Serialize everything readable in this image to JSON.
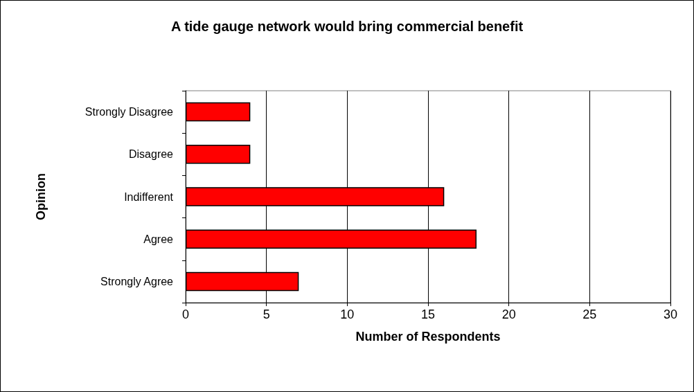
{
  "chart_data": {
    "type": "bar",
    "orientation": "horizontal",
    "title": "A tide gauge network would bring commercial benefit",
    "xlabel": "Number of Respondents",
    "ylabel": "Opinion",
    "categories": [
      "Strongly Disagree",
      "Disagree",
      "Indifferent",
      "Agree",
      "Strongly Agree"
    ],
    "values": [
      4,
      4,
      16,
      18,
      7
    ],
    "color": "#ff0000",
    "xlim": [
      0,
      30
    ],
    "xticks": [
      0,
      5,
      10,
      15,
      20,
      25,
      30
    ],
    "grid": "x"
  }
}
